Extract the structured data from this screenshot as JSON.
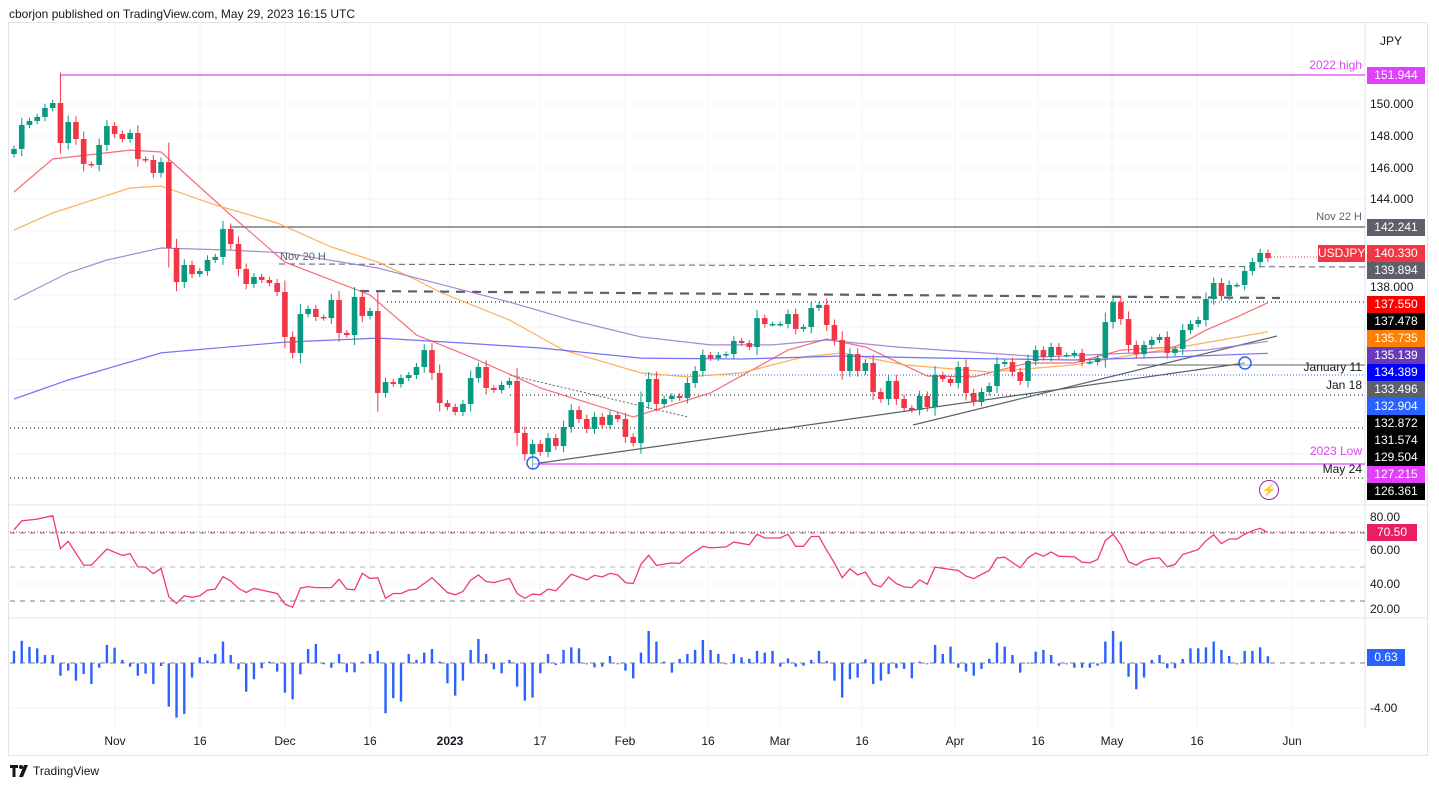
{
  "header": {
    "byline": "cborjon published on TradingView.com, May 29, 2023 16:15 UTC"
  },
  "footer": {
    "brand": "TradingView"
  },
  "symbol_tag": "USDJPY",
  "currency": "JPY",
  "price_ticks": [
    "150.000",
    "148.000",
    "146.000",
    "144.000",
    "138.000"
  ],
  "price_tags": [
    {
      "text": "151.944",
      "bg": "#e040fb"
    },
    {
      "text": "142.241",
      "bg": "#5d606b"
    },
    {
      "text": "140.330",
      "bg": "#f23645"
    },
    {
      "text": "139.894",
      "bg": "#5d606b"
    },
    {
      "text": "137.550",
      "bg": "#ff0000"
    },
    {
      "text": "137.478",
      "bg": "#000000"
    },
    {
      "text": "135.735",
      "bg": "#ff7f00"
    },
    {
      "text": "135.139",
      "bg": "#673ab7"
    },
    {
      "text": "134.389",
      "bg": "#0000ff"
    },
    {
      "text": "133.496",
      "bg": "#5d606b"
    },
    {
      "text": "132.904",
      "bg": "#2962ff"
    },
    {
      "text": "132.872",
      "bg": "#000000"
    },
    {
      "text": "131.574",
      "bg": "#000000"
    },
    {
      "text": "129.504",
      "bg": "#000000"
    },
    {
      "text": "127.215",
      "bg": "#e040fb"
    },
    {
      "text": "126.361",
      "bg": "#000000"
    }
  ],
  "annotations": {
    "high_2022": "2022 high",
    "nov22": "Nov 22 H",
    "nov20": "Nov 20 H",
    "jan11": "January 11",
    "jan18": "Jan 18",
    "low_2023": "2023 Low",
    "may24": "May 24"
  },
  "rsi_axis": {
    "ticks": [
      "80.00",
      "60.00",
      "40.00",
      "20.00"
    ],
    "current": "70.50",
    "current_color": "#e91e63"
  },
  "macd_axis": {
    "ticks": [
      "-4.00"
    ],
    "current": "0.63",
    "current_color": "#2962ff"
  },
  "time_ticks": [
    "Nov",
    "16",
    "Dec",
    "16",
    "2023",
    "17",
    "Feb",
    "16",
    "Mar",
    "16",
    "Apr",
    "16",
    "May",
    "16",
    "Jun"
  ],
  "chart_data": {
    "type": "candlestick",
    "symbol": "USDJPY",
    "timeframe": "daily",
    "colors": {
      "up": "#089981",
      "down": "#f23645",
      "ma_fast": "#f7525f",
      "ma_50": "#ffa040",
      "ma_100": "#9575cd",
      "ma_200": "#5b5bf5",
      "rsi": "#f23b6e",
      "macd": "#2962ff"
    },
    "first_open": 146.84,
    "close": [
      147.16,
      148.66,
      148.91,
      149.16,
      149.72,
      150.03,
      147.53,
      148.84,
      147.78,
      146.22,
      146.16,
      147.41,
      148.59,
      148.09,
      147.78,
      148.16,
      146.53,
      146.47,
      145.66,
      146.34,
      140.97,
      138.84,
      139.91,
      139.34,
      139.53,
      140.22,
      140.41,
      142.16,
      141.22,
      139.66,
      138.72,
      139.16,
      138.97,
      138.78,
      138.22,
      135.41,
      134.41,
      136.84,
      137.16,
      136.66,
      136.59,
      137.72,
      135.66,
      135.53,
      137.91,
      136.72,
      137.03,
      131.91,
      132.59,
      132.47,
      132.84,
      133.03,
      133.53,
      134.59,
      133.16,
      131.28,
      131.03,
      130.72,
      131.22,
      132.84,
      133.53,
      132.22,
      132.09,
      132.41,
      132.66,
      129.41,
      128.09,
      128.72,
      128.22,
      129.09,
      128.59,
      129.78,
      130.84,
      130.28,
      129.66,
      130.41,
      129.91,
      130.53,
      130.28,
      129.16,
      128.78,
      131.34,
      132.78,
      131.22,
      131.53,
      131.72,
      131.59,
      132.53,
      133.28,
      134.28,
      134.09,
      134.28,
      134.34,
      135.16,
      135.03,
      134.78,
      136.59,
      136.22,
      136.22,
      136.22,
      136.84,
      135.91,
      136.03,
      137.22,
      137.41,
      136.16,
      135.22,
      133.28,
      134.34,
      133.28,
      133.78,
      131.97,
      131.53,
      132.66,
      131.53,
      130.97,
      130.84,
      131.72,
      131.03,
      133.03,
      132.78,
      132.53,
      133.53,
      131.91,
      131.34,
      131.97,
      132.34,
      133.72,
      133.84,
      133.22,
      132.66,
      133.91,
      134.59,
      134.16,
      134.78,
      134.28,
      134.28,
      134.41,
      133.84,
      133.84,
      134.09,
      136.34,
      137.59,
      136.53,
      134.91,
      134.34,
      134.91,
      135.22,
      135.41,
      134.41,
      134.66,
      135.84,
      136.22,
      136.47,
      137.78,
      138.78,
      137.97,
      138.66,
      138.66,
      139.53,
      140.09,
      140.66,
      140.33
    ],
    "high_overrides": {
      "7": 151.944,
      "68": 127.215
    },
    "moving_averages": [
      {
        "name": "MA fast",
        "color": "#f7525f",
        "points": [
          [
            1,
            144.47
          ],
          [
            6,
            146.53
          ],
          [
            16,
            147.09
          ],
          [
            20,
            146.97
          ],
          [
            29,
            143.03
          ],
          [
            36,
            140.09
          ],
          [
            47,
            138.03
          ],
          [
            53,
            135.53
          ],
          [
            60,
            134.16
          ],
          [
            69,
            132.22
          ],
          [
            81,
            130.41
          ],
          [
            91,
            131.91
          ],
          [
            101,
            134.59
          ],
          [
            106,
            135.28
          ],
          [
            111,
            134.78
          ],
          [
            119,
            132.97
          ],
          [
            125,
            132.91
          ],
          [
            132,
            133.78
          ],
          [
            138,
            133.78
          ],
          [
            144,
            134.59
          ],
          [
            151,
            134.78
          ],
          [
            155,
            135.84
          ],
          [
            159,
            136.66
          ],
          [
            163,
            137.55
          ]
        ]
      },
      {
        "name": "MA 50",
        "color": "#ffa040",
        "points": [
          [
            1,
            142.09
          ],
          [
            6,
            143.16
          ],
          [
            16,
            144.72
          ],
          [
            20,
            144.84
          ],
          [
            27,
            143.66
          ],
          [
            35,
            142.53
          ],
          [
            42,
            141.03
          ],
          [
            48,
            140.09
          ],
          [
            53,
            138.97
          ],
          [
            56,
            138.22
          ],
          [
            65,
            136.47
          ],
          [
            72,
            134.59
          ],
          [
            82,
            133.16
          ],
          [
            88,
            132.91
          ],
          [
            95,
            133.16
          ],
          [
            103,
            134.16
          ],
          [
            108,
            134.41
          ],
          [
            116,
            133.66
          ],
          [
            127,
            133.22
          ],
          [
            138,
            133.66
          ],
          [
            144,
            134.16
          ],
          [
            151,
            134.72
          ],
          [
            157,
            135.22
          ],
          [
            163,
            135.735
          ]
        ]
      },
      {
        "name": "MA 100",
        "color": "#9575cd",
        "points": [
          [
            1,
            137.72
          ],
          [
            8,
            139.41
          ],
          [
            13,
            140.22
          ],
          [
            20,
            140.97
          ],
          [
            29,
            140.84
          ],
          [
            36,
            140.66
          ],
          [
            48,
            139.72
          ],
          [
            59,
            138.34
          ],
          [
            65,
            137.59
          ],
          [
            73,
            136.47
          ],
          [
            82,
            135.41
          ],
          [
            91,
            134.91
          ],
          [
            99,
            134.91
          ],
          [
            106,
            135.22
          ],
          [
            115,
            134.78
          ],
          [
            121,
            134.59
          ],
          [
            134,
            134.16
          ],
          [
            146,
            134.41
          ],
          [
            155,
            134.59
          ],
          [
            163,
            135.139
          ]
        ]
      },
      {
        "name": "MA 200",
        "color": "#5b5bf5",
        "points": [
          [
            1,
            131.53
          ],
          [
            8,
            132.72
          ],
          [
            20,
            134.41
          ],
          [
            36,
            135.09
          ],
          [
            48,
            135.34
          ],
          [
            59,
            135.03
          ],
          [
            69,
            134.72
          ],
          [
            82,
            134.09
          ],
          [
            95,
            134.03
          ],
          [
            108,
            134.22
          ],
          [
            121,
            134.09
          ],
          [
            138,
            133.97
          ],
          [
            151,
            134.16
          ],
          [
            163,
            134.389
          ]
        ]
      }
    ],
    "rsi": {
      "name": "RSI",
      "levels": [
        70,
        50,
        30
      ],
      "ylim": [
        20,
        85
      ],
      "points": [
        [
          1,
          72.2
        ],
        [
          2,
          77.5
        ],
        [
          4,
          78.6
        ],
        [
          6,
          80.6
        ],
        [
          7,
          61
        ],
        [
          8,
          65.3
        ],
        [
          10,
          51.2
        ],
        [
          11,
          51.2
        ],
        [
          13,
          60.8
        ],
        [
          15,
          56.9
        ],
        [
          16,
          58
        ],
        [
          17,
          50.2
        ],
        [
          18,
          50
        ],
        [
          19,
          46.1
        ],
        [
          20,
          49.2
        ],
        [
          21,
          32.4
        ],
        [
          22,
          28.4
        ],
        [
          23,
          32.9
        ],
        [
          24,
          32
        ],
        [
          25,
          32.9
        ],
        [
          26,
          36.3
        ],
        [
          27,
          36.9
        ],
        [
          28,
          44.3
        ],
        [
          29,
          41.8
        ],
        [
          30,
          37.3
        ],
        [
          31,
          34.9
        ],
        [
          32,
          37.3
        ],
        [
          33,
          36.3
        ],
        [
          35,
          34.3
        ],
        [
          36,
          28
        ],
        [
          37,
          26.1
        ],
        [
          38,
          37.5
        ],
        [
          39,
          38.4
        ],
        [
          40,
          37.8
        ],
        [
          42,
          37.8
        ],
        [
          43,
          42.7
        ],
        [
          44,
          36.9
        ],
        [
          45,
          36.5
        ],
        [
          46,
          46.3
        ],
        [
          47,
          43.3
        ],
        [
          48,
          43.7
        ],
        [
          49,
          31.4
        ],
        [
          50,
          34.3
        ],
        [
          51,
          34.3
        ],
        [
          52,
          36.3
        ],
        [
          53,
          36.9
        ],
        [
          55,
          43.7
        ],
        [
          57,
          34.9
        ],
        [
          58,
          33.5
        ],
        [
          59,
          35.5
        ],
        [
          60,
          42.2
        ],
        [
          61,
          45.3
        ],
        [
          62,
          41.4
        ],
        [
          63,
          40.8
        ],
        [
          65,
          43.3
        ],
        [
          66,
          34.3
        ],
        [
          67,
          31.4
        ],
        [
          68,
          33.9
        ],
        [
          69,
          33.5
        ],
        [
          70,
          36.9
        ],
        [
          71,
          35.9
        ],
        [
          73,
          45.7
        ],
        [
          75,
          42.4
        ],
        [
          76,
          45.1
        ],
        [
          77,
          44.1
        ],
        [
          78,
          46.3
        ],
        [
          79,
          45.3
        ],
        [
          80,
          40.8
        ],
        [
          81,
          40.2
        ],
        [
          82,
          51.6
        ],
        [
          83,
          57.1
        ],
        [
          84,
          51
        ],
        [
          86,
          52.5
        ],
        [
          87,
          52.2
        ],
        [
          88,
          56.1
        ],
        [
          90,
          62.4
        ],
        [
          91,
          61.4
        ],
        [
          93,
          62
        ],
        [
          94,
          64.9
        ],
        [
          96,
          63.3
        ],
        [
          97,
          69.6
        ],
        [
          98,
          67.3
        ],
        [
          100,
          67.3
        ],
        [
          101,
          69.6
        ],
        [
          102,
          62.4
        ],
        [
          103,
          62.4
        ],
        [
          104,
          68.2
        ],
        [
          105,
          68.2
        ],
        [
          106,
          60
        ],
        [
          107,
          52.5
        ],
        [
          108,
          43.7
        ],
        [
          109,
          49
        ],
        [
          110,
          45.3
        ],
        [
          111,
          47.1
        ],
        [
          112,
          39.8
        ],
        [
          113,
          38.2
        ],
        [
          114,
          44.1
        ],
        [
          115,
          40.2
        ],
        [
          116,
          38.2
        ],
        [
          117,
          37.8
        ],
        [
          118,
          42.4
        ],
        [
          119,
          39.8
        ],
        [
          120,
          50
        ],
        [
          121,
          49.2
        ],
        [
          123,
          48
        ],
        [
          124,
          44.7
        ],
        [
          125,
          43.1
        ],
        [
          126,
          45.7
        ],
        [
          127,
          48
        ],
        [
          128,
          55.5
        ],
        [
          129,
          55.9
        ],
        [
          131,
          49.6
        ],
        [
          132,
          55.5
        ],
        [
          133,
          58.4
        ],
        [
          134,
          56.5
        ],
        [
          135,
          59
        ],
        [
          136,
          56.5
        ],
        [
          138,
          56.1
        ],
        [
          139,
          52.9
        ],
        [
          140,
          52.5
        ],
        [
          141,
          54.5
        ],
        [
          142,
          65.7
        ],
        [
          143,
          69.6
        ],
        [
          144,
          63.3
        ],
        [
          145,
          53.1
        ],
        [
          146,
          51.2
        ],
        [
          147,
          53.9
        ],
        [
          148,
          55.1
        ],
        [
          149,
          55.5
        ],
        [
          150,
          50.2
        ],
        [
          151,
          51.6
        ],
        [
          152,
          57.5
        ],
        [
          154,
          60.4
        ],
        [
          155,
          65.7
        ],
        [
          156,
          69.2
        ],
        [
          157,
          63.9
        ],
        [
          158,
          66.7
        ],
        [
          159,
          66.7
        ],
        [
          160,
          69.6
        ],
        [
          161,
          71.6
        ],
        [
          162,
          73.1
        ],
        [
          163,
          70.5
        ]
      ]
    },
    "macd_histogram": [
      1.1,
      2.0,
      1.45,
      1.33,
      0.74,
      0.74,
      -1.1,
      -0.65,
      -1.54,
      -0.95,
      -1.84,
      -0.39,
      1.63,
      1.39,
      0.3,
      -0.3,
      -1.1,
      -0.92,
      -1.84,
      -0.24,
      -3.85,
      -4.83,
      -4.5,
      -1.27,
      0.53,
      0.24,
      0.83,
      1.93,
      0.74,
      -0.53,
      -2.52,
      -1.42,
      -0.44,
      0.15,
      -0.74,
      -2.61,
      -3.2,
      -0.98,
      1.27,
      1.72,
      -0.09,
      -0.39,
      0.83,
      -0.8,
      -0.8,
      0.15,
      0.83,
      1.1,
      -4.44,
      -3.1,
      -3.4,
      0.83,
      0.3,
      0.95,
      1.27,
      0.15,
      -1.78,
      -2.87,
      -1.54,
      1.19,
      2.16,
      0.83,
      -0.53,
      -0.89,
      0.3,
      -2.07,
      -3.32,
      -3.05,
      -0.89,
      0.83,
      -0.15,
      1.19,
      1.42,
      1.33,
      0,
      -0.36,
      -0.3,
      0.65,
      -0.09,
      -0.65,
      -1.33,
      0.95,
      2.87,
      1.93,
      0.15,
      -0.83,
      0.39,
      0.83,
      1.19,
      2.07,
      1.19,
      0.83,
      0,
      0.83,
      0.53,
      0.39,
      1.1,
      0.95,
      1.1,
      -0.3,
      0.44,
      -0.3,
      -0.21,
      0.3,
      1.1,
      0.21,
      -1.54,
      -3.05,
      -1.42,
      -1.27,
      0.36,
      -1.84,
      -1.54,
      -0.95,
      -0.44,
      -0.5,
      -1.33,
      0.15,
      0,
      1.63,
      0.83,
      1.48,
      -0.39,
      -0.74,
      -1.1,
      -0.5,
      0.39,
      1.84,
      1.48,
      0.74,
      -0.83,
      0.06,
      1.04,
      1.19,
      0.74,
      -0.21,
      0,
      -0.39,
      -0.39,
      -0.39,
      -0.21,
      1.93,
      2.87,
      1.93,
      -1.19,
      -2.31,
      -1.27,
      0.3,
      0.74,
      -0.44,
      -0.44,
      0.39,
      1.33,
      1.33,
      1.42,
      1.93,
      1.19,
      0.65,
      -0.09,
      1.1,
      1.1,
      1.42,
      0.63
    ],
    "last_price": 140.33,
    "ylim": [
      126.0,
      153.0
    ]
  }
}
